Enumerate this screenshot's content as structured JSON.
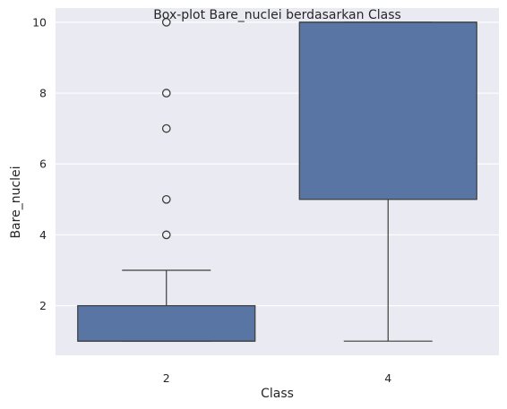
{
  "chart_data": {
    "type": "box",
    "title": "Box-plot Bare_nuclei berdasarkan Class",
    "xlabel": "Class",
    "ylabel": "Bare_nuclei",
    "categories": [
      "2",
      "4"
    ],
    "ylim": [
      0.6,
      10.4
    ],
    "yticks": [
      2,
      4,
      6,
      8,
      10
    ],
    "grid": true,
    "boxes": [
      {
        "category": "2",
        "whisker_low": 1,
        "q1": 1,
        "median": 1,
        "q3": 2,
        "whisker_high": 3,
        "outliers": [
          4,
          5,
          7,
          8,
          10
        ]
      },
      {
        "category": "4",
        "whisker_low": 1,
        "q1": 5,
        "median": 10,
        "q3": 10,
        "whisker_high": 10,
        "outliers": []
      }
    ],
    "colors": {
      "box_fill": "#5875a4",
      "line": "#3d3d3d",
      "plot_background": "#eaeaf2",
      "grid": "#ffffff",
      "text": "#262626"
    }
  }
}
